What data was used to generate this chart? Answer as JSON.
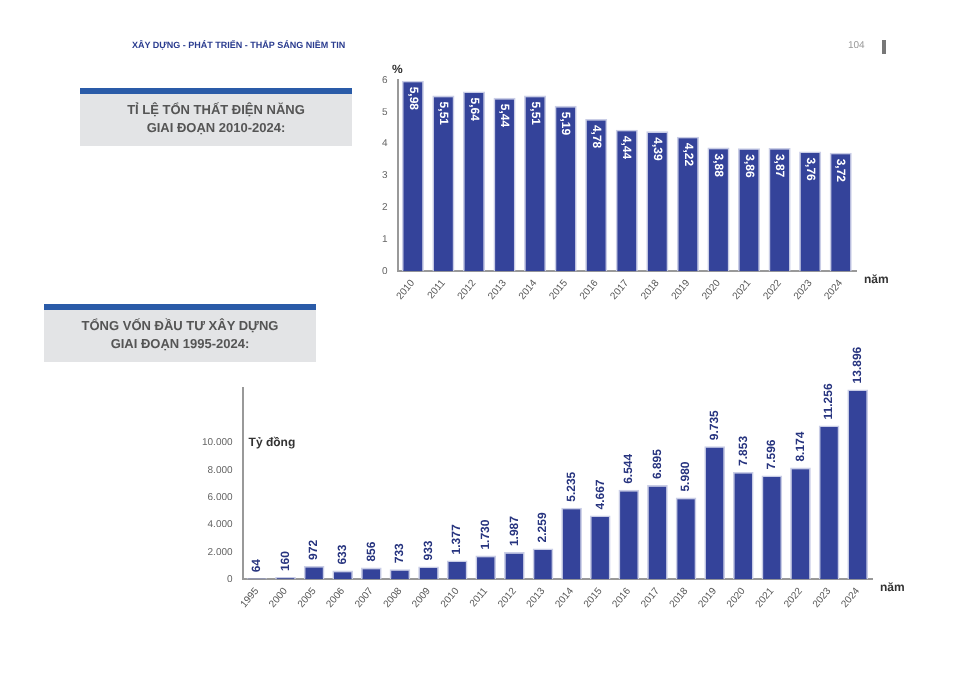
{
  "chart_data": [
    {
      "type": "bar",
      "title": "TỈ LỆ TỔN THẤT ĐIỆN NĂNG\nGIAI ĐOẠN 2010-2024:",
      "ylabel": "%",
      "xlabel": "năm",
      "annotations": [
        "XÂY DỰNG - PHÁT TRIỂN - THẮP SÁNG NIỀM TIN",
        "104"
      ],
      "categories": [
        "2010",
        "2011",
        "2012",
        "2013",
        "2014",
        "2015",
        "2016",
        "2017",
        "2018",
        "2019",
        "2020",
        "2021",
        "2022",
        "2023",
        "2024"
      ],
      "values": [
        5.98,
        5.51,
        5.64,
        5.44,
        5.51,
        5.19,
        4.78,
        4.44,
        4.39,
        4.22,
        3.88,
        3.86,
        3.87,
        3.76,
        3.72
      ],
      "value_labels": [
        "5,98",
        "5,51",
        "5,64",
        "5,44",
        "5,51",
        "5,19",
        "4,78",
        "4,44",
        "4,39",
        "4,22",
        "3,88",
        "3,86",
        "3,87",
        "3,76",
        "3,72"
      ],
      "color": "#34439a",
      "ylim": [
        0,
        6
      ],
      "yticks": [
        0,
        1,
        2,
        3,
        4,
        5,
        6
      ],
      "grid": false,
      "legend": false
    },
    {
      "type": "bar",
      "title": "TỔNG VỐN ĐẦU TƯ XÂY DỰNG\nGIAI ĐOẠN 1995-2024:",
      "ylabel": "Tỷ đồng",
      "xlabel": "năm",
      "categories": [
        "1995",
        "2000",
        "2005",
        "2006",
        "2007",
        "2008",
        "2009",
        "2010",
        "2011",
        "2012",
        "2013",
        "2014",
        "2015",
        "2016",
        "2017",
        "2018",
        "2019",
        "2020",
        "2021",
        "2022",
        "2023",
        "2024"
      ],
      "values": [
        64,
        160,
        972,
        633,
        856,
        733,
        933,
        1377,
        1730,
        1987,
        2259,
        5235,
        4667,
        6544,
        6895,
        5980,
        9735,
        7853,
        7596,
        8174,
        11256,
        13896
      ],
      "value_labels": [
        "64",
        "160",
        "972",
        "633",
        "856",
        "733",
        "933",
        "1.377",
        "1.730",
        "1.987",
        "2.259",
        "5.235",
        "4.667",
        "6.544",
        "6.895",
        "5.980",
        "9.735",
        "7.853",
        "7.596",
        "8.174",
        "11.256",
        "13.896"
      ],
      "color": "#34439a",
      "ylim": [
        0,
        14000
      ],
      "yticks": [
        {
          "value": 0,
          "label": "0"
        },
        {
          "value": 2000,
          "label": "2.000"
        },
        {
          "value": 4000,
          "label": "4.000"
        },
        {
          "value": 6000,
          "label": "6.000"
        },
        {
          "value": 8000,
          "label": "8.000"
        },
        {
          "value": 10000,
          "label": "10.000"
        }
      ],
      "grid": false,
      "legend": false
    }
  ]
}
